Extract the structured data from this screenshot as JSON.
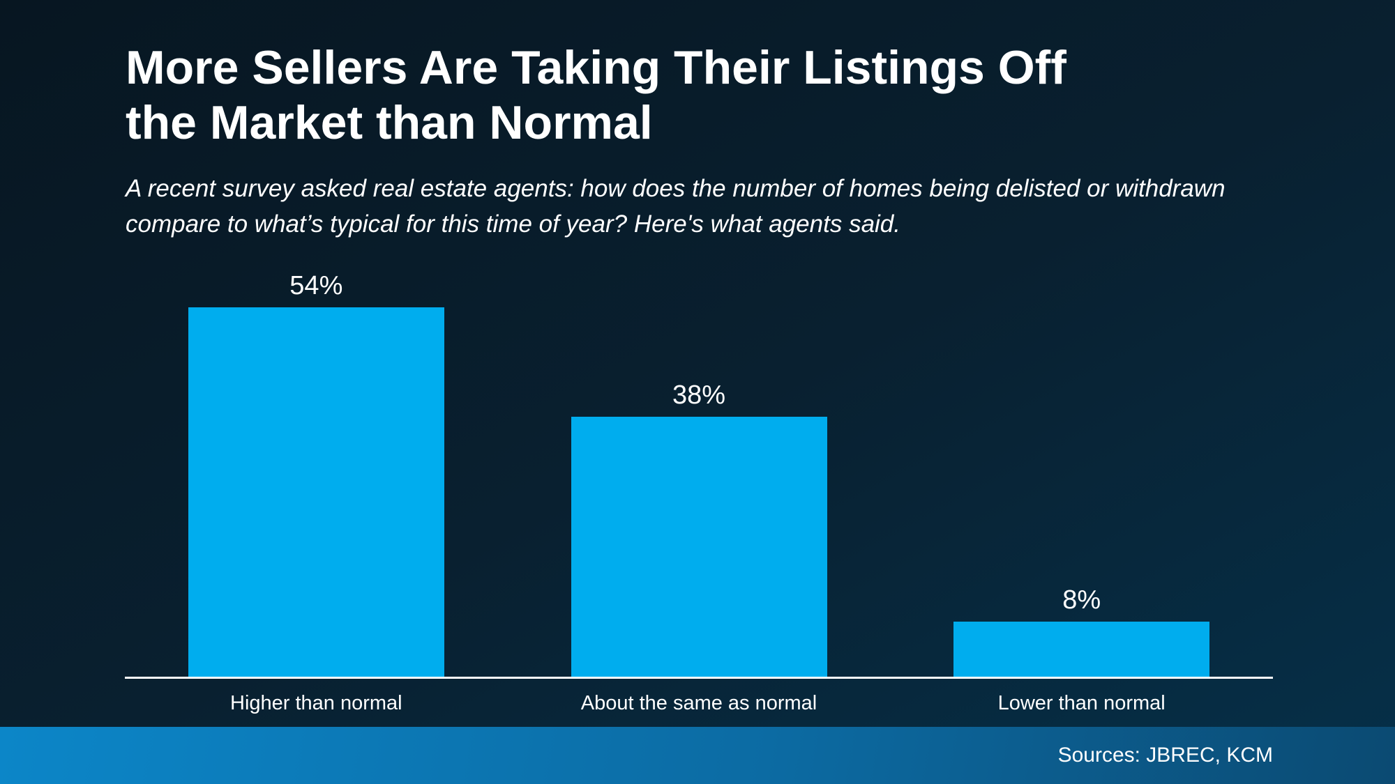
{
  "header": {
    "title": "More Sellers Are Taking Their Listings Off the Market than Normal",
    "subtitle": "A recent survey asked real estate agents: how does the number of homes being delisted or withdrawn compare to what’s typical for this time of year? Here's what agents said."
  },
  "chart_data": {
    "type": "bar",
    "categories": [
      "Higher than normal",
      "About the same as normal",
      "Lower than normal"
    ],
    "values": [
      54,
      38,
      8
    ],
    "value_labels": [
      "54%",
      "38%",
      "8%"
    ],
    "title": "More Sellers Are Taking Their Listings Off the Market than Normal",
    "xlabel": "",
    "ylabel": "",
    "ylim": [
      0,
      55
    ],
    "grid": false,
    "legend_position": "none",
    "bar_color": "#00adee",
    "value_label_color": "#ffffff",
    "axis_line_color": "#ffffff"
  },
  "footer": {
    "sources": "Sources: JBREC, KCM"
  },
  "colors": {
    "background_top": "#071621",
    "background_mid": "#092030",
    "background_bottom": "#053049",
    "bar": "#00adee",
    "axis": "#ffffff",
    "footer_left": "#0c86c8",
    "footer_mid": "#0c6ba3",
    "footer_right": "#0b4a72",
    "text": "#ffffff"
  }
}
